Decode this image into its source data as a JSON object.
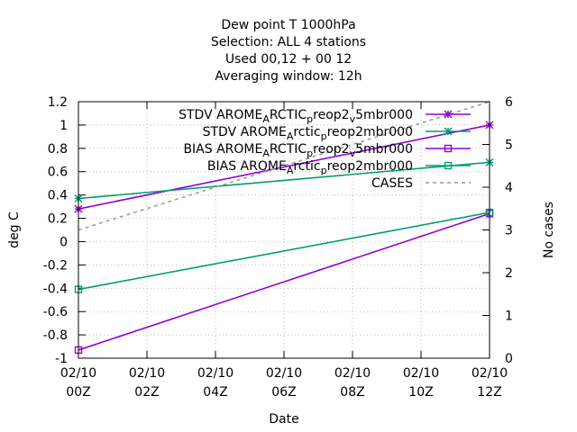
{
  "chart_data": {
    "type": "line",
    "title_lines": [
      "Dew point T 1000hPa",
      "Selection: ALL      4 stations",
      "Used  00,12  + 00 12",
      "Averaging window: 12h"
    ],
    "xlabel": "Date",
    "ylabel": "deg C",
    "y2label": "No cases",
    "x_ticks": [
      {
        "x": 0,
        "line1": "02/10",
        "line2": "00Z"
      },
      {
        "x": 2,
        "line1": "02/10",
        "line2": "02Z"
      },
      {
        "x": 4,
        "line1": "02/10",
        "line2": "04Z"
      },
      {
        "x": 6,
        "line1": "02/10",
        "line2": "06Z"
      },
      {
        "x": 8,
        "line1": "02/10",
        "line2": "08Z"
      },
      {
        "x": 10,
        "line1": "02/10",
        "line2": "10Z"
      },
      {
        "x": 12,
        "line1": "02/10",
        "line2": "12Z"
      }
    ],
    "xlim": [
      0,
      12
    ],
    "ylim": [
      -1,
      1.2
    ],
    "y2lim": [
      0,
      6
    ],
    "y_ticks": [
      {
        "v": -1,
        "label": "-1"
      },
      {
        "v": -0.8,
        "label": "-0.8"
      },
      {
        "v": -0.6,
        "label": "-0.6"
      },
      {
        "v": -0.4,
        "label": "-0.4"
      },
      {
        "v": -0.2,
        "label": "-0.2"
      },
      {
        "v": 0,
        "label": "0"
      },
      {
        "v": 0.2,
        "label": "0.2"
      },
      {
        "v": 0.4,
        "label": "0.4"
      },
      {
        "v": 0.6,
        "label": "0.6"
      },
      {
        "v": 0.8,
        "label": "0.8"
      },
      {
        "v": 1,
        "label": "1"
      },
      {
        "v": 1.2,
        "label": "1.2"
      }
    ],
    "y2_ticks": [
      {
        "v": 0,
        "label": "0"
      },
      {
        "v": 1,
        "label": "1"
      },
      {
        "v": 2,
        "label": "2"
      },
      {
        "v": 3,
        "label": "3"
      },
      {
        "v": 4,
        "label": "4"
      },
      {
        "v": 5,
        "label": "5"
      },
      {
        "v": 6,
        "label": "6"
      }
    ],
    "grid": true,
    "legend_placement": "top-right",
    "series": [
      {
        "name": "STDV AROME_ARCTIC_preop2_v5mbr000",
        "legend_parts": [
          "STDV AROME",
          "A",
          "RCTIC",
          "p",
          "reop2",
          "v",
          "5mbr000"
        ],
        "color": "#9400d3",
        "marker": "star",
        "dash": false,
        "axis": "y",
        "x": [
          0,
          12
        ],
        "y": [
          0.28,
          1.0
        ]
      },
      {
        "name": "STDV AROME_Arctic_preop2mbr000",
        "legend_parts": [
          "STDV AROME",
          "A",
          "rctic",
          "p",
          "reop2mbr000"
        ],
        "color": "#009e73",
        "marker": "star",
        "dash": false,
        "axis": "y",
        "x": [
          0,
          12
        ],
        "y": [
          0.37,
          0.68
        ]
      },
      {
        "name": "BIAS AROME_ARCTIC_preop2_v5mbr000",
        "legend_parts": [
          "BIAS AROME",
          "A",
          "RCTIC",
          "p",
          "reop2",
          "v",
          "5mbr000"
        ],
        "color": "#9400d3",
        "marker": "square",
        "dash": false,
        "axis": "y",
        "x": [
          0,
          12
        ],
        "y": [
          -0.93,
          0.24
        ]
      },
      {
        "name": "BIAS AROME_Arctic_preop2mbr000",
        "legend_parts": [
          "BIAS AROME",
          "A",
          "rctic",
          "p",
          "reop2mbr000"
        ],
        "color": "#009e73",
        "marker": "square",
        "dash": false,
        "axis": "y",
        "x": [
          0,
          12
        ],
        "y": [
          -0.41,
          0.25
        ]
      },
      {
        "name": "CASES",
        "legend_parts": [
          "CASES"
        ],
        "color": "#999999",
        "marker": "none",
        "dash": true,
        "axis": "y2",
        "x": [
          0,
          12
        ],
        "y": [
          3,
          6
        ]
      }
    ]
  }
}
